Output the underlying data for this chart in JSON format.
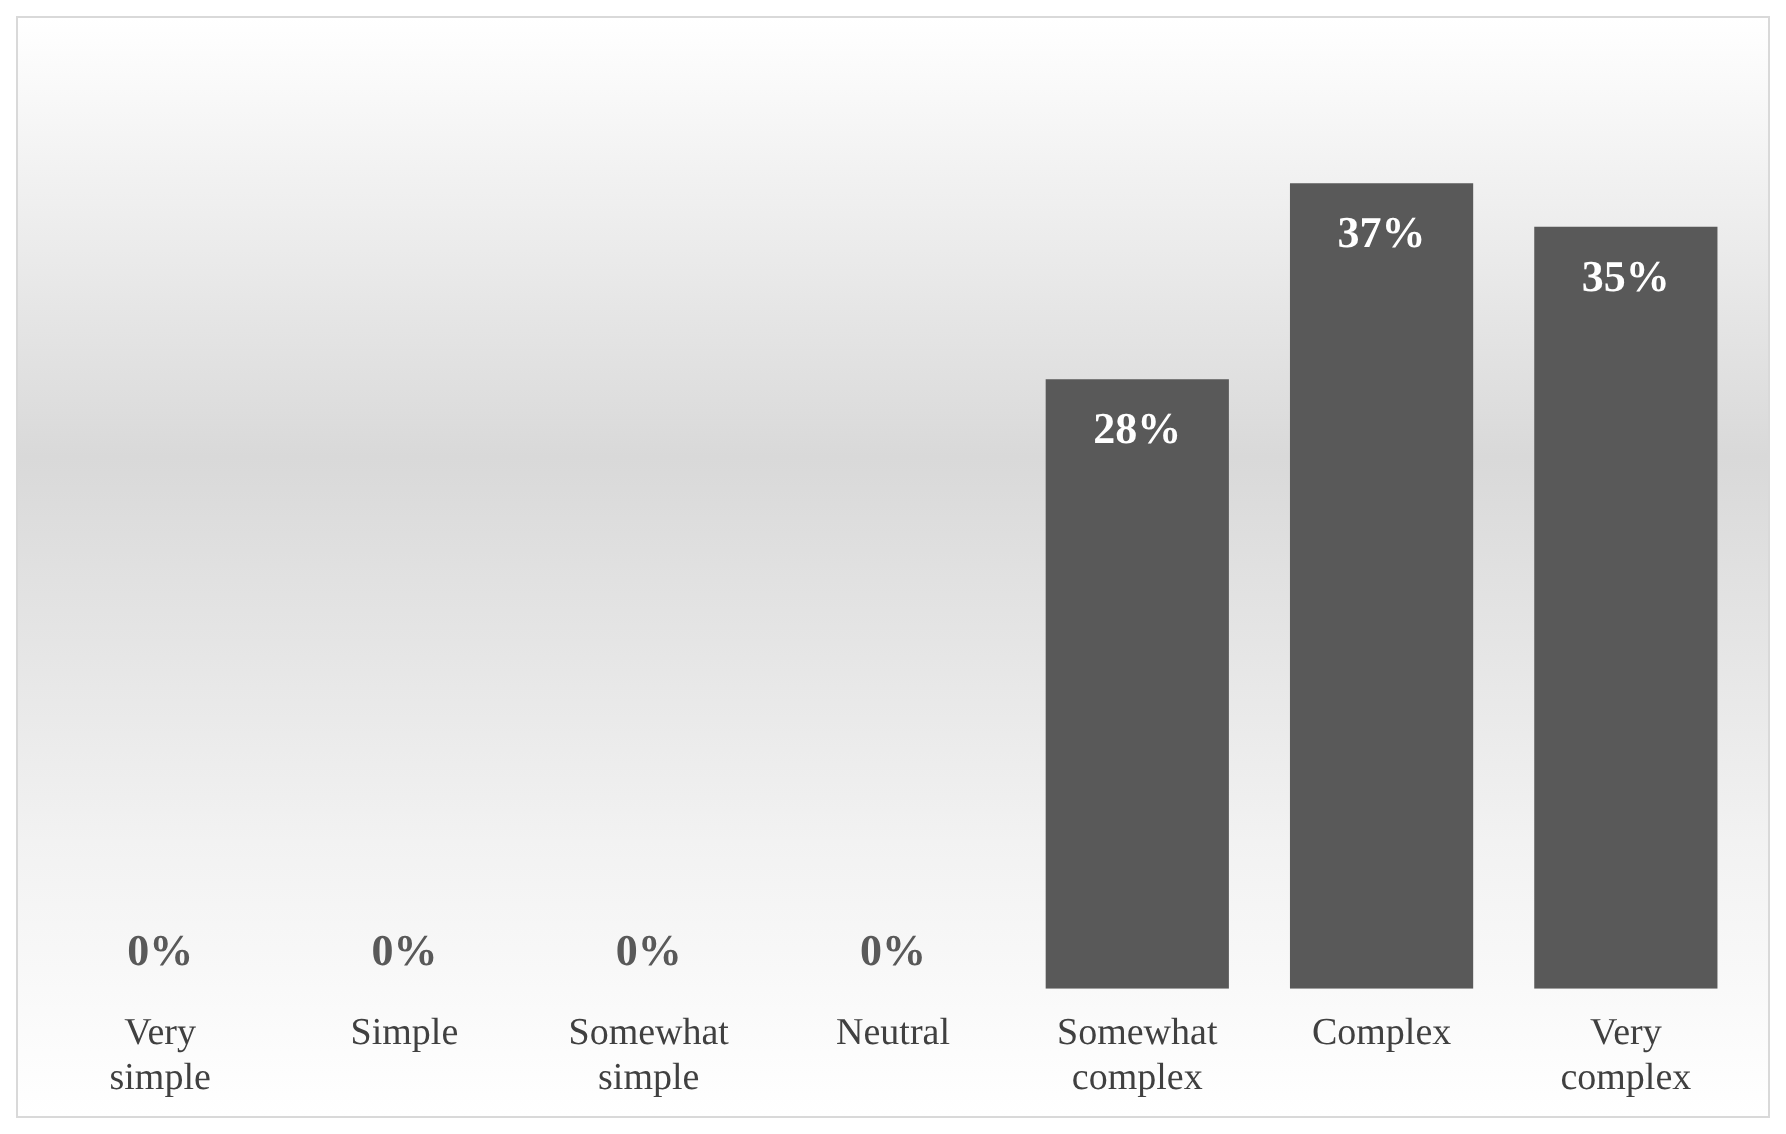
{
  "chart_data": {
    "type": "bar",
    "categories": [
      "Very simple",
      "Simple",
      "Somewhat simple",
      "Neutral",
      "Somewhat complex",
      "Complex",
      "Very complex"
    ],
    "values": [
      0,
      0,
      0,
      0,
      28,
      37,
      35
    ],
    "value_labels": [
      "0%",
      "0%",
      "0%",
      "0%",
      "28%",
      "37%",
      "35%"
    ],
    "color": "#595959",
    "grid": false,
    "legend": false
  }
}
